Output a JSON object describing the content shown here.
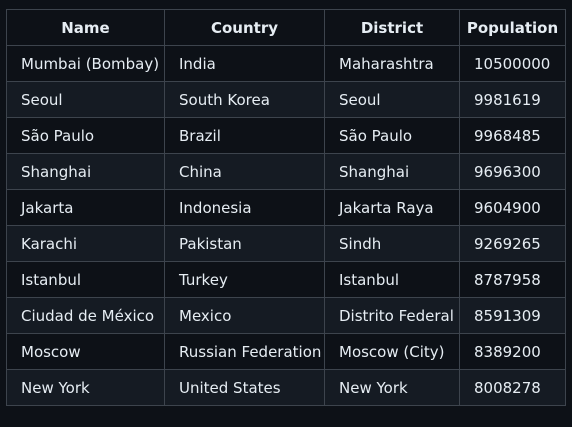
{
  "table": {
    "headers": [
      "Name",
      "Country",
      "District",
      "Population"
    ],
    "rows": [
      [
        "Mumbai (Bombay)",
        "India",
        "Maharashtra",
        "10500000"
      ],
      [
        "Seoul",
        "South Korea",
        "Seoul",
        "9981619"
      ],
      [
        "São Paulo",
        "Brazil",
        "São Paulo",
        "9968485"
      ],
      [
        "Shanghai",
        "China",
        "Shanghai",
        "9696300"
      ],
      [
        "Jakarta",
        "Indonesia",
        "Jakarta Raya",
        "9604900"
      ],
      [
        "Karachi",
        "Pakistan",
        "Sindh",
        "9269265"
      ],
      [
        "Istanbul",
        "Turkey",
        "Istanbul",
        "8787958"
      ],
      [
        "Ciudad de México",
        "Mexico",
        "Distrito Federal",
        "8591309"
      ],
      [
        "Moscow",
        "Russian Federation",
        "Moscow (City)",
        "8389200"
      ],
      [
        "New York",
        "United States",
        "New York",
        "8008278"
      ]
    ]
  }
}
